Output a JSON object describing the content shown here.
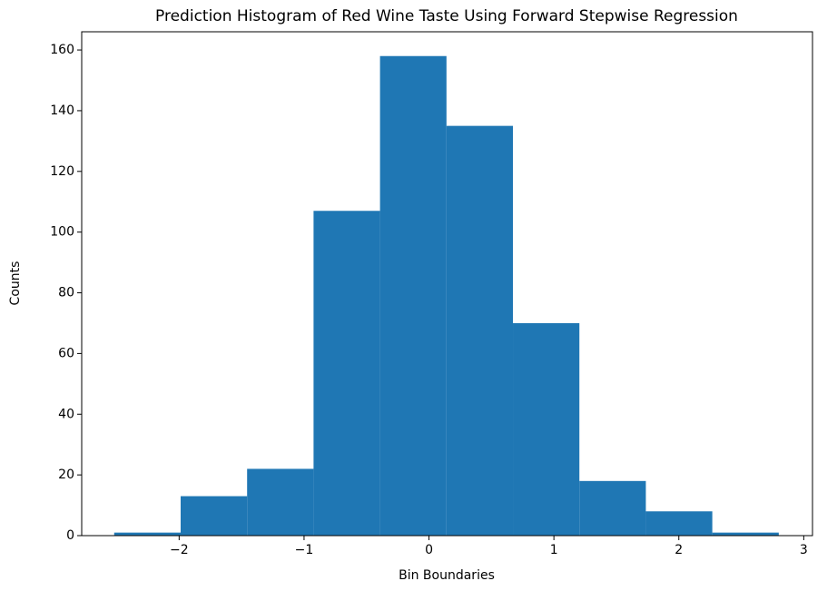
{
  "chart_data": {
    "type": "histogram",
    "title": "Prediction Histogram of Red Wine Taste Using Forward Stepwise Regression",
    "x_label": "Bin Boundaries",
    "y_label": "Counts",
    "bins": [
      -2.52,
      -1.988,
      -1.456,
      -0.924,
      -0.392,
      0.14,
      0.672,
      1.204,
      1.736,
      2.268,
      2.8
    ],
    "counts": [
      1,
      13,
      22,
      107,
      158,
      135,
      70,
      18,
      8,
      1
    ],
    "color": "#1f77b4",
    "xlim": [
      -2.78,
      3.07
    ],
    "xticks": [
      {
        "value": -2,
        "label": "−2"
      },
      {
        "value": -1,
        "label": "−1"
      },
      0,
      1,
      2,
      3
    ],
    "ylim": [
      0,
      166
    ],
    "yticks": [
      0,
      20,
      40,
      60,
      80,
      100,
      120,
      140,
      160
    ]
  }
}
